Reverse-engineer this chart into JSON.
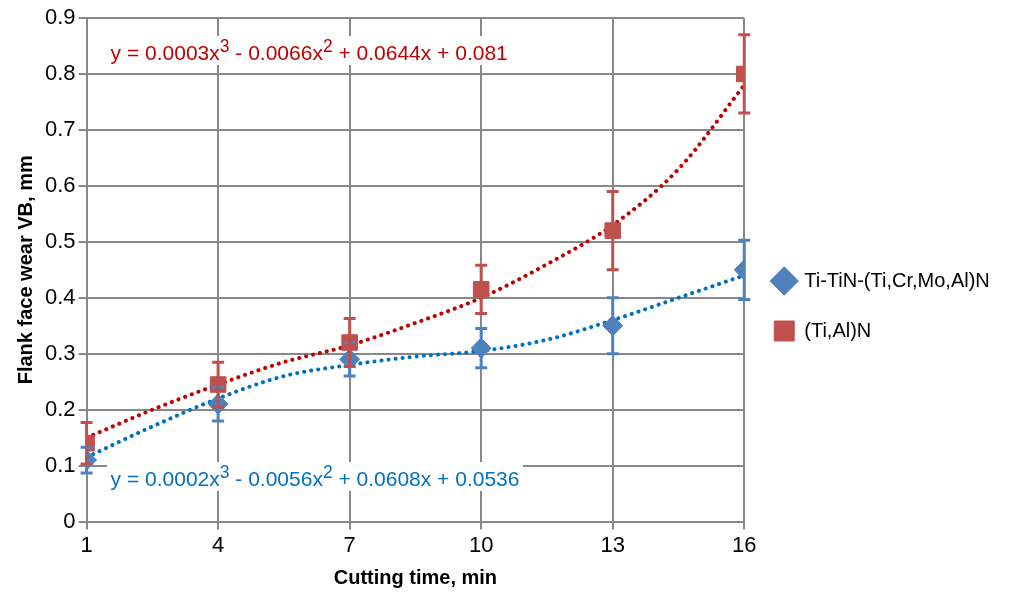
{
  "chart_data": {
    "type": "scatter",
    "xlabel": "Cutting time, min",
    "ylabel": "Flank face wear VB, mm",
    "xlim": [
      1,
      16
    ],
    "xticks": [
      1,
      4,
      7,
      10,
      13,
      16
    ],
    "ylim": [
      0,
      0.9
    ],
    "yticks": [
      0,
      0.1,
      0.2,
      0.3,
      0.4,
      0.5,
      0.6,
      0.7,
      0.8,
      0.9
    ],
    "grid": true,
    "legend": "right",
    "series": [
      {
        "name": "Ti-TiN-(Ti,Cr,Mo,Al)N",
        "type": "scatter",
        "marker": "diamond",
        "color": "#4f81bd",
        "x": [
          1,
          4,
          7,
          10,
          13,
          16
        ],
        "values": [
          0.11,
          0.21,
          0.29,
          0.31,
          0.35,
          0.45
        ],
        "errors": [
          0.023,
          0.03,
          0.03,
          0.035,
          0.05,
          0.053
        ]
      },
      {
        "name": "(Ti,Al)N",
        "type": "scatter",
        "marker": "square",
        "color": "#c0504d",
        "x": [
          1,
          4,
          7,
          10,
          13,
          16
        ],
        "values": [
          0.14,
          0.245,
          0.32,
          0.415,
          0.52,
          0.8
        ],
        "errors": [
          0.037,
          0.04,
          0.043,
          0.043,
          0.07,
          0.07
        ]
      },
      {
        "type": "line",
        "line_style": "dotted",
        "marker": "none",
        "color": "#0070c0",
        "x": [
          1,
          2.5,
          4,
          5.5,
          7,
          8.5,
          10,
          11.5,
          13,
          14.5,
          16
        ],
        "values": [
          0.115,
          0.17,
          0.22,
          0.26,
          0.28,
          0.295,
          0.305,
          0.325,
          0.36,
          0.4,
          0.44
        ]
      },
      {
        "type": "line",
        "line_style": "dotted",
        "marker": "none",
        "color": "#c00000",
        "x": [
          1,
          2.5,
          4,
          5.5,
          7,
          8.5,
          10,
          11.5,
          13,
          14.5,
          16
        ],
        "values": [
          0.15,
          0.2,
          0.245,
          0.285,
          0.315,
          0.355,
          0.4,
          0.46,
          0.53,
          0.63,
          0.78
        ]
      }
    ],
    "annotations": [
      "y = 0.0003x$^{3}$ - 0.0066x$^{2}$ + 0.0644x + 0.081",
      "y = 0.0002x$^{3}$ - 0.0056x$^{2}$ + 0.0608x + 0.0536"
    ]
  }
}
